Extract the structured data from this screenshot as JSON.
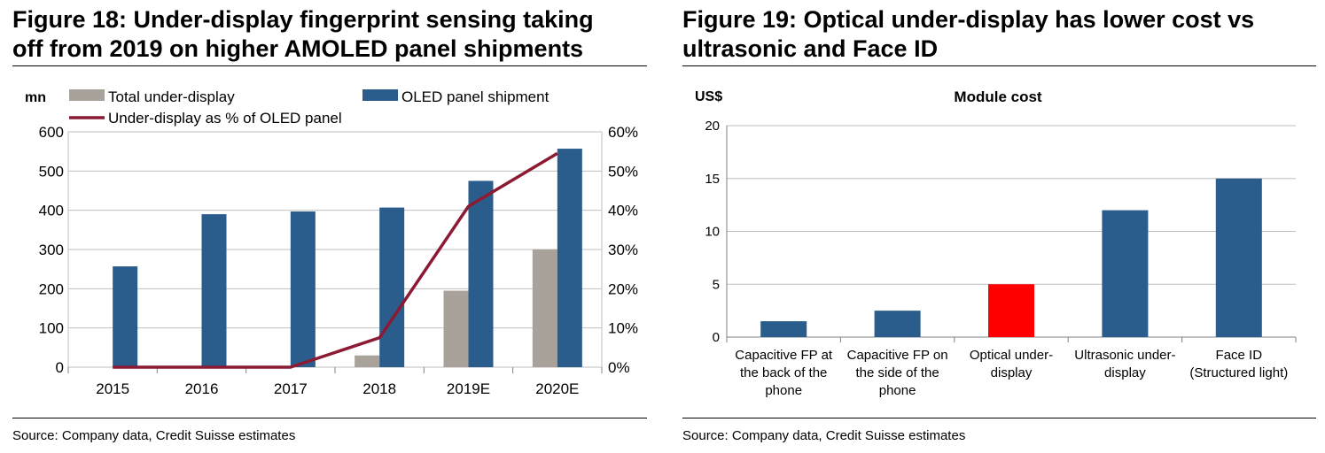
{
  "left": {
    "title_line1": "Figure 18: Under-display fingerprint sensing taking",
    "title_line2": "off from 2019 on higher AMOLED panel shipments",
    "source": "Source: Company data, Credit Suisse estimates"
  },
  "right": {
    "title_line1": "Figure 19: Optical under-display has lower cost vs",
    "title_line2": "ultrasonic and Face ID",
    "source": "Source: Company data, Credit Suisse estimates"
  },
  "colors": {
    "bar_blue": "#2B5D8C",
    "bar_grey": "#A8A29A",
    "line_red": "#8B1A32",
    "highlight_red": "#FF0000",
    "grid": "#BFBFBF"
  },
  "chart_data": [
    {
      "type": "bar",
      "combo": "bar+line",
      "title": "",
      "ylabel": "mn",
      "categories": [
        "2015",
        "2016",
        "2017",
        "2018",
        "2019E",
        "2020E"
      ],
      "ylim": [
        0,
        600
      ],
      "yticks": [
        "0",
        "100",
        "200",
        "300",
        "400",
        "500",
        "600"
      ],
      "y2lim": [
        0,
        60
      ],
      "y2ticks": [
        "0%",
        "10%",
        "20%",
        "30%",
        "40%",
        "50%",
        "60%"
      ],
      "grid": true,
      "legend_position": "top",
      "series": [
        {
          "name": "Total under-display",
          "kind": "bar",
          "axis": "left",
          "color": "#A8A29A",
          "values": [
            0,
            0,
            0,
            30,
            195,
            300
          ]
        },
        {
          "name": "OLED panel shipment",
          "kind": "bar",
          "axis": "left",
          "color": "#2B5D8C",
          "values": [
            257,
            390,
            397,
            407,
            475,
            557
          ]
        },
        {
          "name": "Under-display as % of OLED panel",
          "kind": "line",
          "axis": "right",
          "color": "#8B1A32",
          "values": [
            0,
            0,
            0,
            7.5,
            41,
            54.5
          ]
        }
      ]
    },
    {
      "type": "bar",
      "title": "Module cost",
      "ylabel": "US$",
      "categories": [
        [
          "Capacitive FP at",
          "the back of the",
          "phone"
        ],
        [
          "Capacitive FP on",
          "the side of the",
          "phone"
        ],
        [
          "Optical under-",
          "display"
        ],
        [
          "Ultrasonic under-",
          "display"
        ],
        [
          "Face ID",
          "(Structured light)"
        ]
      ],
      "values": [
        1.5,
        2.5,
        5,
        12,
        15
      ],
      "highlight_index": 2,
      "ylim": [
        0,
        20
      ],
      "yticks": [
        "0",
        "5",
        "10",
        "15",
        "20"
      ],
      "grid": true
    }
  ]
}
